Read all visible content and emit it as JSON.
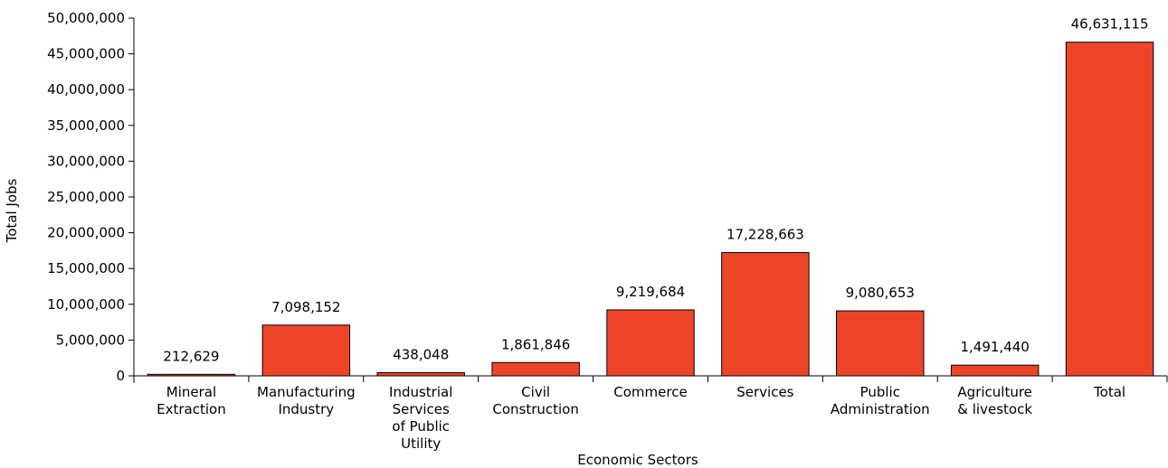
{
  "chart_data": {
    "type": "bar",
    "title": "",
    "xlabel": "Economic Sectors",
    "ylabel": "Total Jobs",
    "ylim": [
      0,
      50000000
    ],
    "ytick_step": 5000000,
    "ytick_labels": [
      "0",
      "5,000,000",
      "10,000,000",
      "15,000,000",
      "20,000,000",
      "25,000,000",
      "30,000,000",
      "35,000,000",
      "40,000,000",
      "45,000,000",
      "50,000,000"
    ],
    "categories": [
      [
        "Mineral",
        "Extraction"
      ],
      [
        "Manufacturing",
        "Industry"
      ],
      [
        "Industrial",
        "Services",
        "of Public",
        "Utility"
      ],
      [
        "Civil",
        "Construction"
      ],
      [
        "Commerce"
      ],
      [
        "Services"
      ],
      [
        "Public",
        "Administration"
      ],
      [
        "Agriculture",
        "& livestock"
      ],
      [
        "Total"
      ]
    ],
    "values": [
      212629,
      7098152,
      438048,
      1861846,
      9219684,
      17228663,
      9080653,
      1491440,
      46631115
    ],
    "value_labels": [
      "212,629",
      "7,098,152",
      "438,048",
      "1,861,846",
      "9,219,684",
      "17,228,663",
      "9,080,653",
      "1,491,440",
      "46,631,115"
    ],
    "bar_color": "#ee4528",
    "bar_stroke": "#000000",
    "grid": false,
    "legend": "none"
  }
}
